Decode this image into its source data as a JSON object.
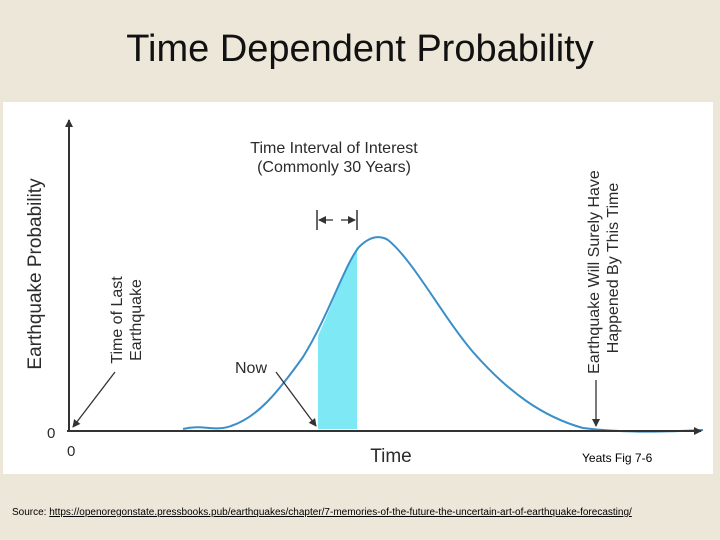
{
  "slide": {
    "title": "Time Dependent Probability",
    "caption": "Yeats Fig 7-6",
    "source_prefix": "Source: ",
    "source_url": "https://openoregonstate.pressbooks.pub/earthquakes/chapter/7-memories-of-the-future-the-uncertain-art-of-earthquake-forecasting/"
  },
  "diagram": {
    "y_axis_label": "Earthquake Probability",
    "x_axis_label": "Time",
    "y_origin_label": "0",
    "x_origin_label": "0",
    "interval_label_line1": "Time Interval of Interest",
    "interval_label_line2": "(Commonly 30 Years)",
    "last_eq_label_line1": "Time of Last",
    "last_eq_label_line2": "Earthquake",
    "now_label": "Now",
    "sure_label_line1": "Earthquake Will Surely Have",
    "sure_label_line2": "Happened By This Time",
    "colors": {
      "curve": "#3a8fc8",
      "shade": "#7fe8f5",
      "axis": "#333333",
      "text": "#2b2b2b"
    }
  }
}
